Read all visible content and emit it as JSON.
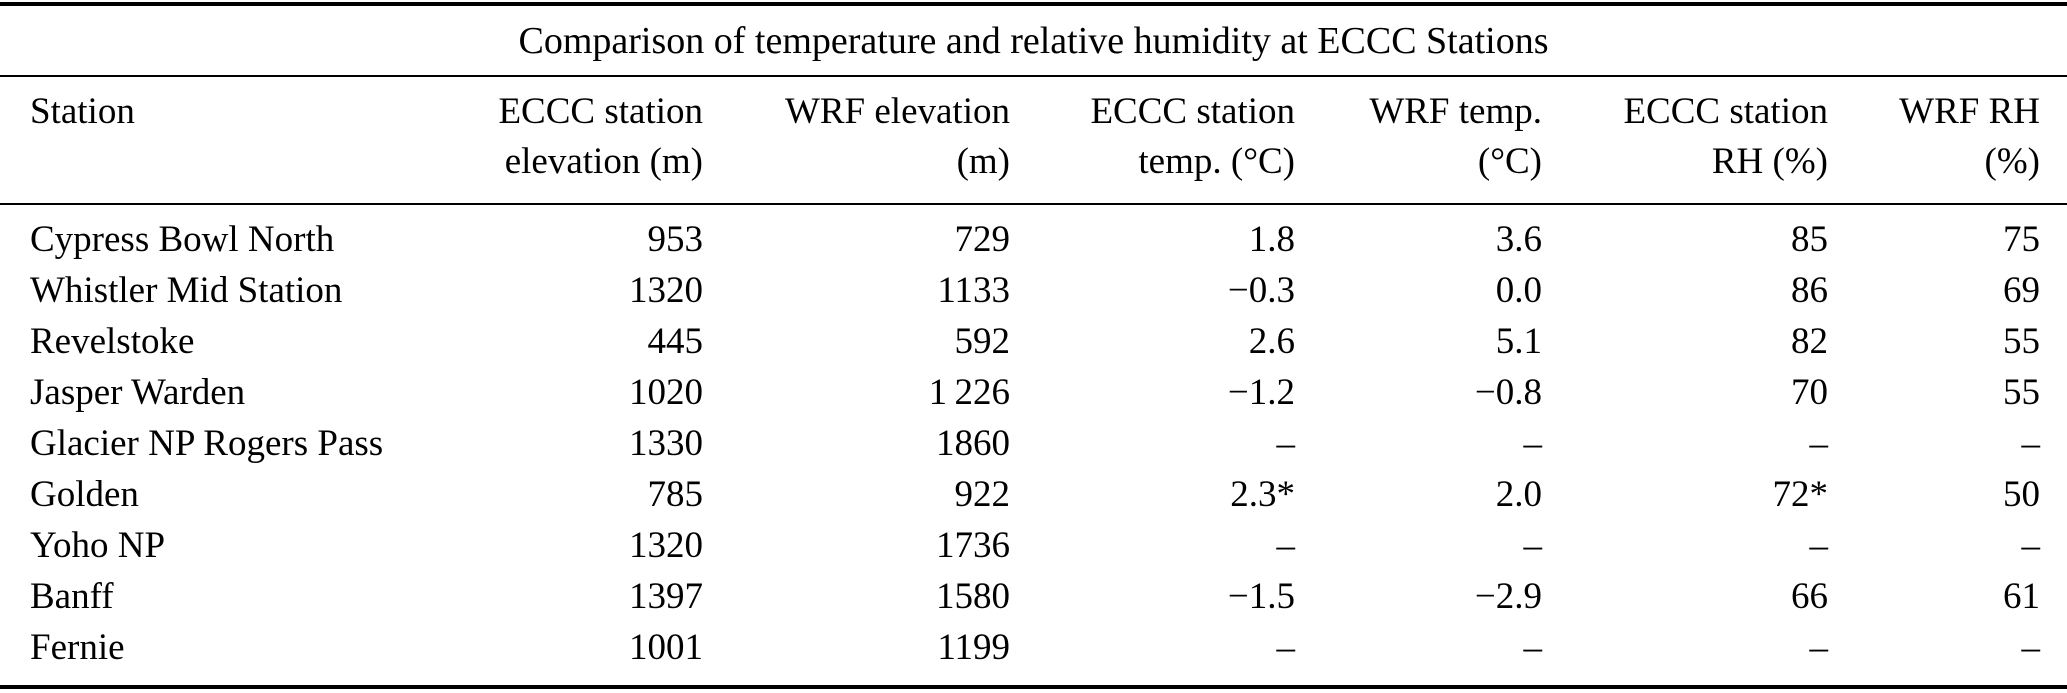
{
  "title": "Comparison of temperature and relative humidity at ECCC Stations",
  "columns": [
    {
      "line1": "Station",
      "line2": ""
    },
    {
      "line1": "ECCC station",
      "line2": "elevation (m)"
    },
    {
      "line1": "WRF elevation",
      "line2": "(m)"
    },
    {
      "line1": "ECCC station",
      "line2": "temp. (°C)"
    },
    {
      "line1": "WRF temp.",
      "line2": "(°C)"
    },
    {
      "line1": "ECCC station",
      "line2": "RH (%)"
    },
    {
      "line1": "WRF RH",
      "line2": "(%)"
    }
  ],
  "rows": [
    [
      "Cypress Bowl North",
      "953",
      "729",
      "1.8",
      "3.6",
      "85",
      "75"
    ],
    [
      "Whistler Mid Station",
      "1320",
      "1133",
      "−0.3",
      "0.0",
      "86",
      "69"
    ],
    [
      "Revelstoke",
      "445",
      "592",
      "2.6",
      "5.1",
      "82",
      "55"
    ],
    [
      "Jasper Warden",
      "1020",
      "1 226",
      "−1.2",
      "−0.8",
      "70",
      "55"
    ],
    [
      "Glacier NP Rogers Pass",
      "1330",
      "1860",
      "–",
      "–",
      "–",
      "–"
    ],
    [
      "Golden",
      "785",
      "922",
      "2.3*",
      "2.0",
      "72*",
      "50"
    ],
    [
      "Yoho NP",
      "1320",
      "1736",
      "–",
      "–",
      "–",
      "–"
    ],
    [
      "Banff",
      "1397",
      "1580",
      "−1.5",
      "−2.9",
      "66",
      "61"
    ],
    [
      "Fernie",
      "1001",
      "1199",
      "–",
      "–",
      "–",
      "–"
    ]
  ],
  "colors": {
    "text": "#000000",
    "background": "#ffffff",
    "rule": "#000000"
  }
}
